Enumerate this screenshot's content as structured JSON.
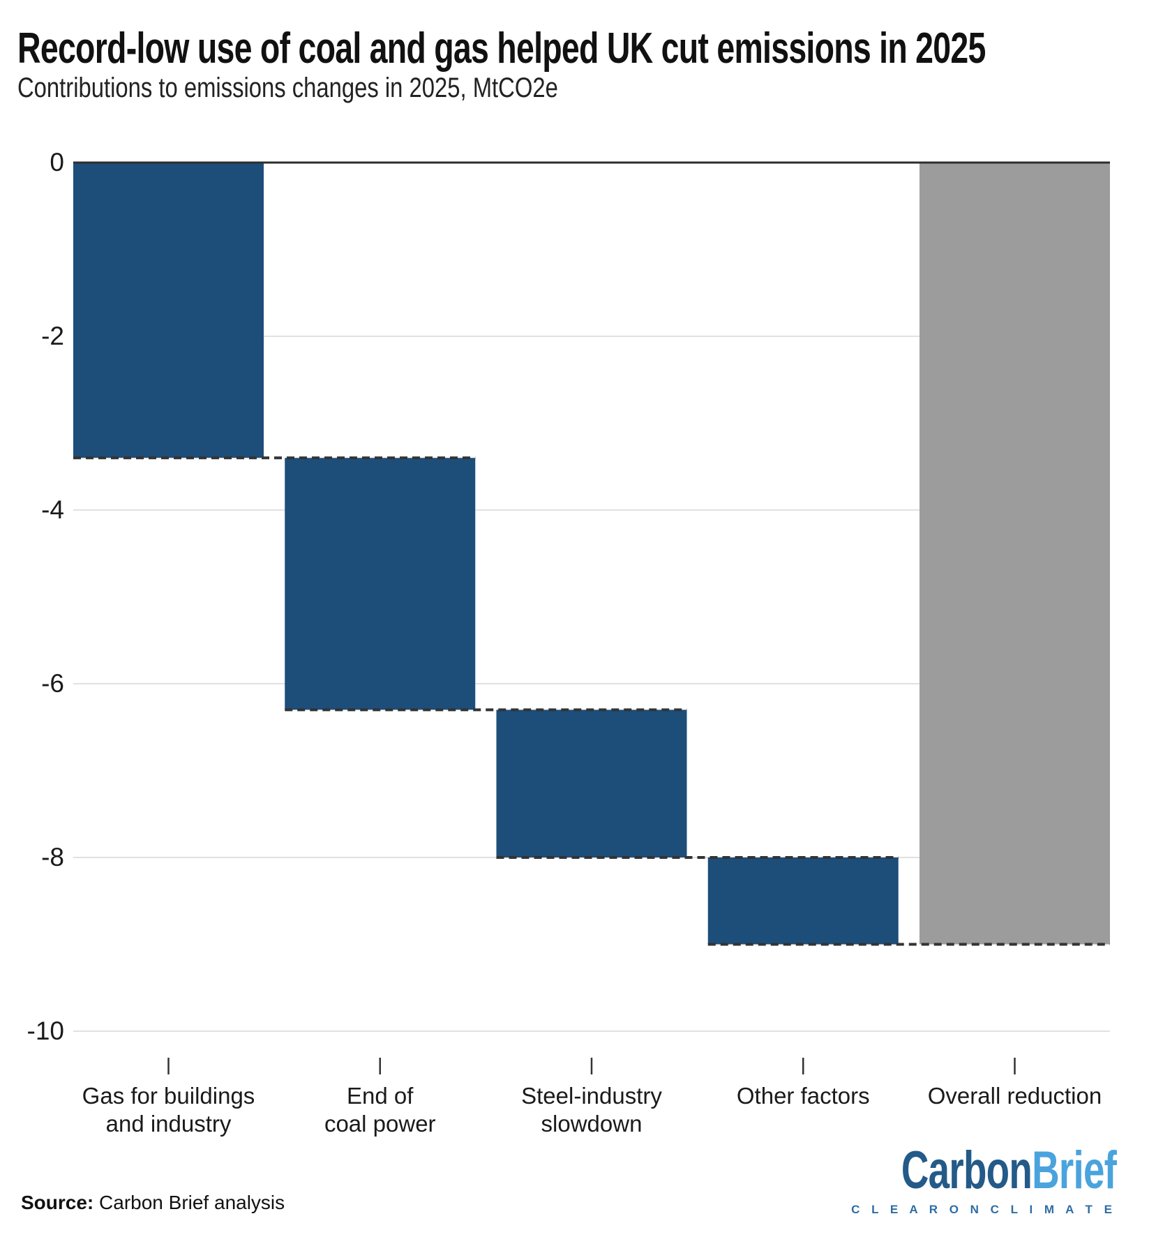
{
  "header": {
    "title": "Record-low use of coal and gas helped UK cut emissions in 2025",
    "subtitle": "Contributions to emissions changes in 2025, MtCO2e"
  },
  "chart_data": {
    "type": "bar",
    "subtype": "waterfall",
    "title": "Record-low use of coal and gas helped UK cut emissions in 2025",
    "subtitle": "Contributions to emissions changes in 2025, MtCO2e",
    "units": "MtCO2e",
    "categories": [
      "Gas for buildings and industry",
      "End of coal power",
      "Steel-industry slowdown",
      "Other factors",
      "Overall reduction"
    ],
    "values": [
      -3.4,
      -2.9,
      -1.7,
      -1.0,
      -9.0
    ],
    "bars": [
      {
        "label_lines": [
          "Gas for buildings",
          "and industry"
        ],
        "start": 0,
        "end": -3.4,
        "value": -3.4,
        "kind": "step"
      },
      {
        "label_lines": [
          "End of",
          "coal power"
        ],
        "start": -3.4,
        "end": -6.3,
        "value": -2.9,
        "kind": "step"
      },
      {
        "label_lines": [
          "Steel-industry",
          "slowdown"
        ],
        "start": -6.3,
        "end": -8.0,
        "value": -1.7,
        "kind": "step"
      },
      {
        "label_lines": [
          "Other factors"
        ],
        "start": -8.0,
        "end": -9.0,
        "value": -1.0,
        "kind": "step"
      },
      {
        "label_lines": [
          "Overall reduction"
        ],
        "start": 0,
        "end": -9.0,
        "value": -9.0,
        "kind": "total"
      }
    ],
    "ylim": [
      -10,
      0
    ],
    "yticks": [
      0,
      -2,
      -4,
      -6,
      -8,
      -10
    ],
    "xlabel": "",
    "ylabel": "",
    "grid": true,
    "legend": "none",
    "colors": {
      "step_bar": "#1d4e7a",
      "total_bar": "#9c9c9c",
      "gridline": "#e1e1e1",
      "zero_line": "#2d2d2d",
      "connector": "#333333",
      "text": "#1a1a1a"
    }
  },
  "footer": {
    "source_label": "Source:",
    "source_text": " Carbon Brief analysis",
    "logo": {
      "part1": "Carbon",
      "part2": "Brief",
      "tagline": "C L E A R   O N   C L I M A T E"
    }
  }
}
